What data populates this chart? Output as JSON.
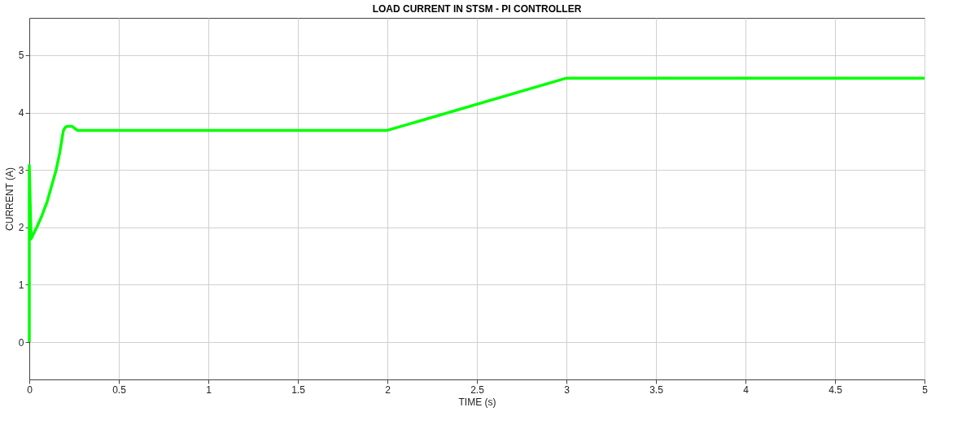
{
  "chart_data": {
    "type": "line",
    "title": "LOAD CURRENT IN STSM - PI CONTROLLER",
    "xlabel": "TIME (s)",
    "ylabel": "CURRENT (A)",
    "x": [
      0,
      0,
      0.01,
      0.04,
      0.07,
      0.1,
      0.13,
      0.15,
      0.17,
      0.19,
      0.2,
      0.21,
      0.24,
      0.26,
      0.27,
      2.0,
      3.0,
      5.0
    ],
    "series": [
      {
        "color": "#00ff00",
        "values": [
          0,
          3.08,
          1.8,
          1.99,
          2.2,
          2.45,
          2.78,
          3.0,
          3.3,
          3.68,
          3.74,
          3.76,
          3.76,
          3.71,
          3.69,
          3.69,
          4.6,
          4.6
        ]
      }
    ],
    "xlim": [
      0,
      5
    ],
    "xticks": [
      0,
      0.5,
      1,
      1.5,
      2,
      2.5,
      3,
      3.5,
      4,
      4.5,
      5
    ],
    "ylim": [
      -0.65,
      5.65
    ],
    "yticks": [
      0,
      1,
      2,
      3,
      4,
      5
    ],
    "grid": true,
    "legend": false,
    "marker": "none",
    "line_style": "solid"
  }
}
